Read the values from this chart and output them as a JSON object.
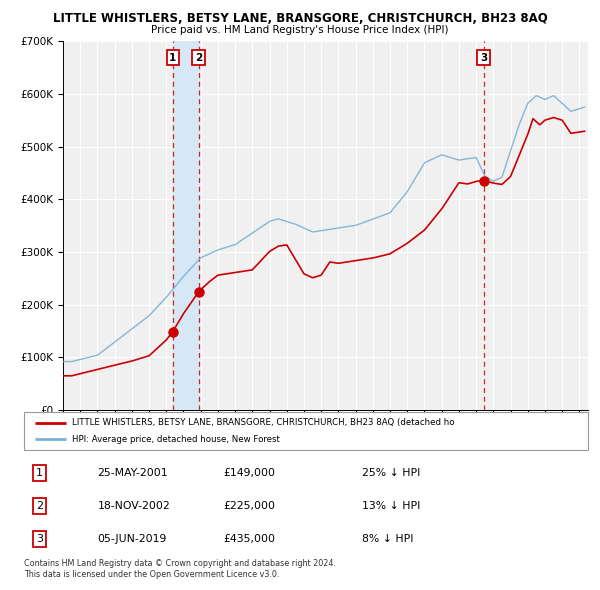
{
  "title": "LITTLE WHISTLERS, BETSY LANE, BRANSGORE, CHRISTCHURCH, BH23 8AQ",
  "subtitle": "Price paid vs. HM Land Registry's House Price Index (HPI)",
  "legend_label_red": "LITTLE WHISTLERS, BETSY LANE, BRANSGORE, CHRISTCHURCH, BH23 8AQ (detached ho",
  "legend_label_blue": "HPI: Average price, detached house, New Forest",
  "footer1": "Contains HM Land Registry data © Crown copyright and database right 2024.",
  "footer2": "This data is licensed under the Open Government Licence v3.0.",
  "transactions": [
    {
      "num": 1,
      "date": "25-MAY-2001",
      "price": "£149,000",
      "pct": "25% ↓ HPI",
      "year": 2001.38,
      "val": 149000
    },
    {
      "num": 2,
      "date": "18-NOV-2002",
      "price": "£225,000",
      "pct": "13% ↓ HPI",
      "year": 2002.88,
      "val": 225000
    },
    {
      "num": 3,
      "date": "05-JUN-2019",
      "price": "£435,000",
      "pct": "8% ↓ HPI",
      "year": 2019.43,
      "val": 435000
    }
  ],
  "red_color": "#cc0000",
  "blue_color": "#7ab0d4",
  "bg_color": "#ffffff",
  "plot_bg": "#f0f0f0",
  "grid_color": "#ffffff",
  "shade_color": "#d6e8f5",
  "ylim_max": 700000,
  "xlim_start": 1995.0,
  "xlim_end": 2025.5
}
